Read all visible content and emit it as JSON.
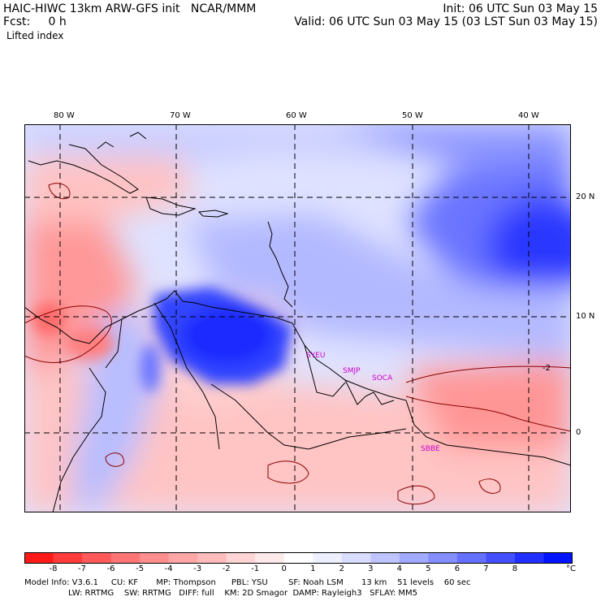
{
  "header": {
    "title_left": "HAIC-HIWC 13km ARW-GFS init   NCAR/MMM",
    "fcst": "Fcst:     0 h",
    "field": "Lifted index",
    "init": "Init: 06 UTC Sun 03 May 15",
    "valid": "Valid: 06 UTC Sun 03 May 15 (03 LST Sun 03 May 15)"
  },
  "axes": {
    "lon_labels": [
      "80 W",
      "70 W",
      "60 W",
      "50 W",
      "40 W"
    ],
    "lat_labels": [
      "20 N",
      "10 N",
      "0"
    ]
  },
  "stations": [
    "SYEU",
    "SMJP",
    "SOCA",
    "SBBE"
  ],
  "contour_label": "-2",
  "colorbar": {
    "labels": [
      "-8",
      "-7",
      "-6",
      "-5",
      "-4",
      "-3",
      "-2",
      "-1",
      "0",
      "1",
      "2",
      "3",
      "4",
      "5",
      "6",
      "7",
      "8"
    ],
    "unit": "°C",
    "colors": [
      "#ff1a1a",
      "#ff3b3b",
      "#ff5a5a",
      "#ff7474",
      "#ff8e8e",
      "#ffa6a6",
      "#ffbcbc",
      "#ffd4d4",
      "#ffeaea",
      "#ffffff",
      "#eef0ff",
      "#d8dcff",
      "#bec4ff",
      "#a2aaff",
      "#858eff",
      "#6670ff",
      "#4450ff",
      "#2230ff",
      "#0014ff"
    ]
  },
  "model_info": {
    "line1": "Model Info: V3.6.1     CU: KF       MP: Thompson      PBL: YSU        SF: Noah LSM       13 km    51 levels    60 sec",
    "line2": "                 LW: RRTMG    SW: RRTMG   DIFF: full    KM: 2D Smagor  DAMP: Rayleigh3   SFLAY: MM5"
  }
}
